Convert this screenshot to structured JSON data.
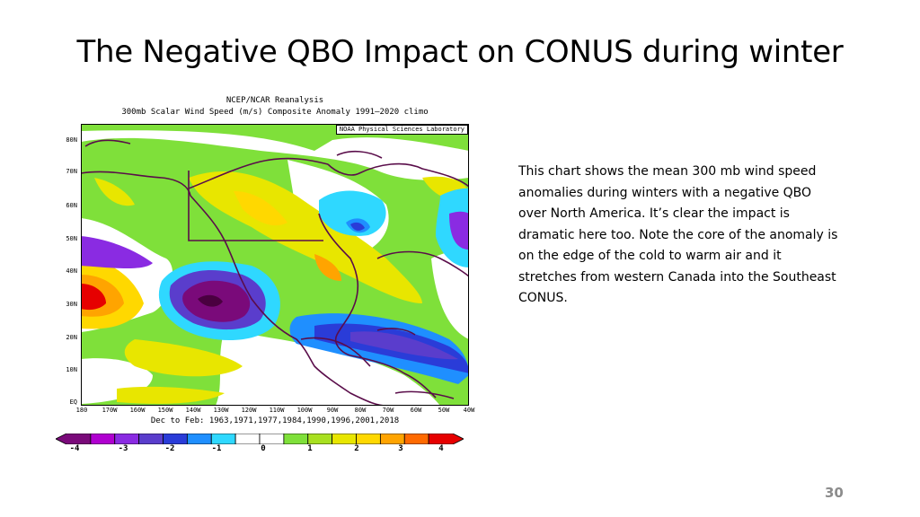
{
  "slide": {
    "title": "The Negative QBO Impact on CONUS during winter",
    "description": "This chart shows the mean 300 mb wind speed anomalies during winters with a negative QBO over North America.  It’s clear the impact is dramatic here too. Note the core of the anomaly is on the edge of the cold to warm air and it stretches from western Canada into the Southeast CONUS.",
    "page_number": "30"
  },
  "map": {
    "header_line1": "NCEP/NCAR Reanalysis",
    "header_line2": "300mb Scalar Wind Speed (m/s) Composite Anomaly 1991–2020 climo",
    "credit": "NOAA Physical Sciences Laboratory",
    "period": "Dec to Feb: 1963,1971,1977,1984,1990,1996,2001,2018",
    "lat_labels": [
      "80N",
      "70N",
      "60N",
      "50N",
      "40N",
      "30N",
      "20N",
      "10N",
      "EQ"
    ],
    "lon_labels": [
      "180",
      "170W",
      "160W",
      "150W",
      "140W",
      "130W",
      "120W",
      "110W",
      "100W",
      "90W",
      "80W",
      "70W",
      "60W",
      "50W",
      "40W"
    ]
  },
  "colorbar": {
    "labels": [
      "-4",
      "-3",
      "-2",
      "-1",
      "0",
      "1",
      "2",
      "3",
      "4"
    ],
    "colors": [
      "#7a0a7a",
      "#b000d0",
      "#8a2be2",
      "#5a3dcc",
      "#2a3cd8",
      "#1f8fff",
      "#2fd8ff",
      "#ffffff",
      "#ffffff",
      "#7fe03a",
      "#a8e020",
      "#e8e600",
      "#ffd800",
      "#ffa400",
      "#ff6a00",
      "#e60000"
    ]
  }
}
